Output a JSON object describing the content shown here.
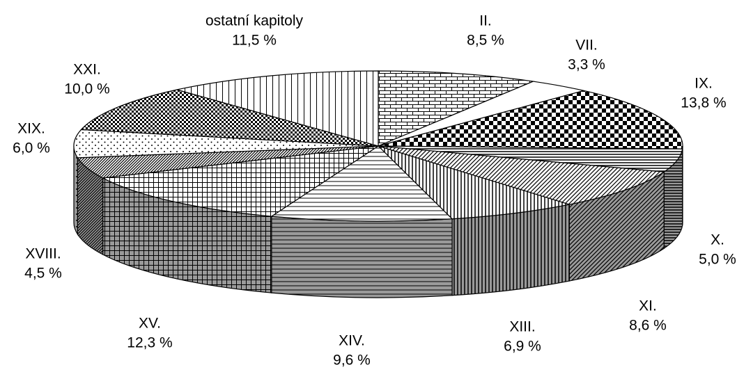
{
  "chart_data": {
    "type": "pie3d",
    "categories": [
      "II.",
      "VII.",
      "IX.",
      "X.",
      "XI.",
      "XIII.",
      "XIV.",
      "XV.",
      "XVIII.",
      "XIX.",
      "XXI.",
      "ostatní kapitoly"
    ],
    "values": [
      8.5,
      3.3,
      13.8,
      5.0,
      8.6,
      6.9,
      9.6,
      12.3,
      4.5,
      6.0,
      10.0,
      11.5
    ],
    "value_labels": [
      "8,5 %",
      "3,3 %",
      "13,8 %",
      "5,0 %",
      "8,6 %",
      "6,9 %",
      "9,6 %",
      "12,3 %",
      "4,5 %",
      "6,0 %",
      "10,0 %",
      "11,5 %"
    ],
    "patterns": [
      "brick",
      "plain",
      "checker",
      "hlines",
      "diag",
      "vlines",
      "hlines-wide",
      "grid",
      "diag-dense",
      "dots",
      "checker-small",
      "vlines-wide"
    ]
  }
}
